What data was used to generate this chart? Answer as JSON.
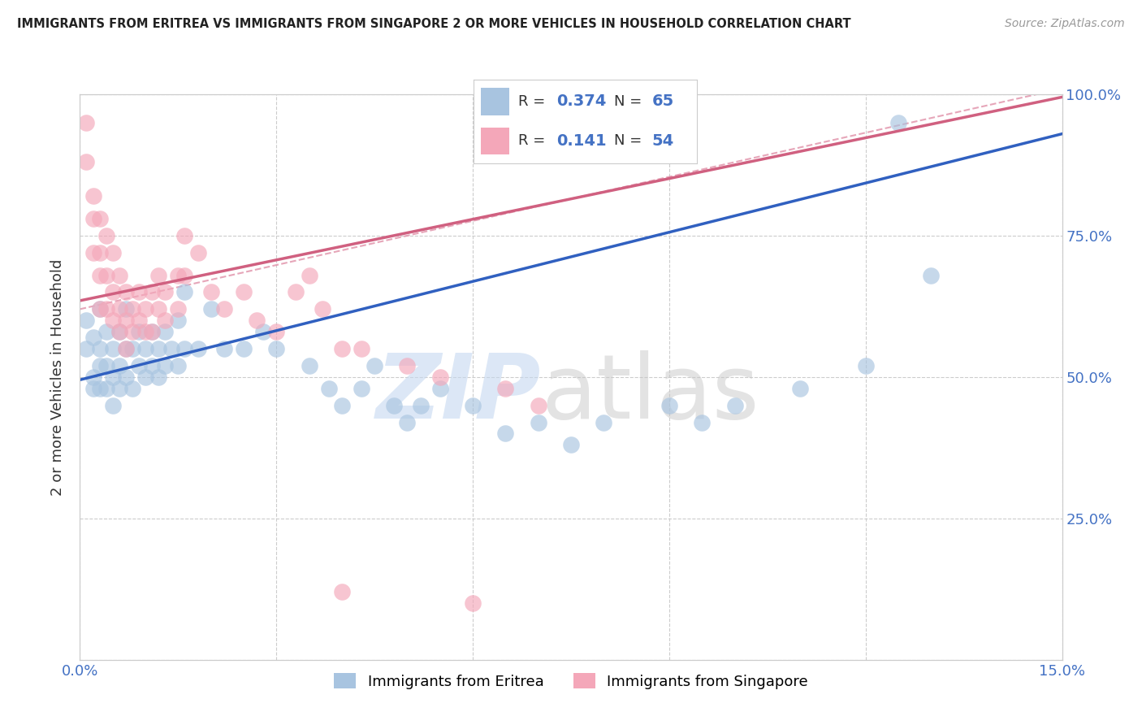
{
  "title": "IMMIGRANTS FROM ERITREA VS IMMIGRANTS FROM SINGAPORE 2 OR MORE VEHICLES IN HOUSEHOLD CORRELATION CHART",
  "source": "Source: ZipAtlas.com",
  "ylabel": "2 or more Vehicles in Household",
  "xlim": [
    0.0,
    0.15
  ],
  "ylim": [
    0.0,
    1.0
  ],
  "xtick_positions": [
    0.0,
    0.03,
    0.06,
    0.09,
    0.12,
    0.15
  ],
  "xtick_labels": [
    "0.0%",
    "",
    "",
    "",
    "",
    "15.0%"
  ],
  "ytick_labels_right": [
    "100.0%",
    "75.0%",
    "50.0%",
    "25.0%"
  ],
  "yticks_right": [
    1.0,
    0.75,
    0.5,
    0.25
  ],
  "eritrea_color": "#a8c4e0",
  "singapore_color": "#f4a7b9",
  "eritrea_R": 0.374,
  "eritrea_N": 65,
  "singapore_R": 0.141,
  "singapore_N": 54,
  "eritrea_line_color": "#3060c0",
  "singapore_line_color": "#d06080",
  "eritrea_line_intercept": 0.495,
  "eritrea_line_slope": 2.9,
  "singapore_line_intercept": 0.635,
  "singapore_line_slope": 2.4,
  "dashed_line_intercept": 0.62,
  "dashed_line_slope": 2.6,
  "background_color": "#ffffff",
  "eritrea_scatter": [
    [
      0.001,
      0.6
    ],
    [
      0.001,
      0.55
    ],
    [
      0.002,
      0.57
    ],
    [
      0.002,
      0.5
    ],
    [
      0.002,
      0.48
    ],
    [
      0.003,
      0.62
    ],
    [
      0.003,
      0.55
    ],
    [
      0.003,
      0.52
    ],
    [
      0.003,
      0.48
    ],
    [
      0.004,
      0.58
    ],
    [
      0.004,
      0.52
    ],
    [
      0.004,
      0.48
    ],
    [
      0.005,
      0.55
    ],
    [
      0.005,
      0.5
    ],
    [
      0.005,
      0.45
    ],
    [
      0.006,
      0.58
    ],
    [
      0.006,
      0.52
    ],
    [
      0.006,
      0.48
    ],
    [
      0.007,
      0.62
    ],
    [
      0.007,
      0.55
    ],
    [
      0.007,
      0.5
    ],
    [
      0.008,
      0.55
    ],
    [
      0.008,
      0.48
    ],
    [
      0.009,
      0.58
    ],
    [
      0.009,
      0.52
    ],
    [
      0.01,
      0.55
    ],
    [
      0.01,
      0.5
    ],
    [
      0.011,
      0.58
    ],
    [
      0.011,
      0.52
    ],
    [
      0.012,
      0.55
    ],
    [
      0.012,
      0.5
    ],
    [
      0.013,
      0.58
    ],
    [
      0.013,
      0.52
    ],
    [
      0.014,
      0.55
    ],
    [
      0.015,
      0.6
    ],
    [
      0.015,
      0.52
    ],
    [
      0.016,
      0.65
    ],
    [
      0.016,
      0.55
    ],
    [
      0.018,
      0.55
    ],
    [
      0.02,
      0.62
    ],
    [
      0.022,
      0.55
    ],
    [
      0.025,
      0.55
    ],
    [
      0.028,
      0.58
    ],
    [
      0.03,
      0.55
    ],
    [
      0.035,
      0.52
    ],
    [
      0.038,
      0.48
    ],
    [
      0.04,
      0.45
    ],
    [
      0.043,
      0.48
    ],
    [
      0.045,
      0.52
    ],
    [
      0.048,
      0.45
    ],
    [
      0.05,
      0.42
    ],
    [
      0.052,
      0.45
    ],
    [
      0.055,
      0.48
    ],
    [
      0.06,
      0.45
    ],
    [
      0.065,
      0.4
    ],
    [
      0.07,
      0.42
    ],
    [
      0.075,
      0.38
    ],
    [
      0.08,
      0.42
    ],
    [
      0.09,
      0.45
    ],
    [
      0.095,
      0.42
    ],
    [
      0.1,
      0.45
    ],
    [
      0.11,
      0.48
    ],
    [
      0.12,
      0.52
    ],
    [
      0.125,
      0.95
    ],
    [
      0.13,
      0.68
    ]
  ],
  "singapore_scatter": [
    [
      0.001,
      0.95
    ],
    [
      0.001,
      0.88
    ],
    [
      0.002,
      0.82
    ],
    [
      0.002,
      0.78
    ],
    [
      0.002,
      0.72
    ],
    [
      0.003,
      0.78
    ],
    [
      0.003,
      0.72
    ],
    [
      0.003,
      0.68
    ],
    [
      0.003,
      0.62
    ],
    [
      0.004,
      0.75
    ],
    [
      0.004,
      0.68
    ],
    [
      0.004,
      0.62
    ],
    [
      0.005,
      0.72
    ],
    [
      0.005,
      0.65
    ],
    [
      0.005,
      0.6
    ],
    [
      0.006,
      0.68
    ],
    [
      0.006,
      0.62
    ],
    [
      0.006,
      0.58
    ],
    [
      0.007,
      0.65
    ],
    [
      0.007,
      0.6
    ],
    [
      0.007,
      0.55
    ],
    [
      0.008,
      0.62
    ],
    [
      0.008,
      0.58
    ],
    [
      0.009,
      0.65
    ],
    [
      0.009,
      0.6
    ],
    [
      0.01,
      0.62
    ],
    [
      0.01,
      0.58
    ],
    [
      0.011,
      0.65
    ],
    [
      0.011,
      0.58
    ],
    [
      0.012,
      0.68
    ],
    [
      0.012,
      0.62
    ],
    [
      0.013,
      0.65
    ],
    [
      0.013,
      0.6
    ],
    [
      0.015,
      0.68
    ],
    [
      0.015,
      0.62
    ],
    [
      0.016,
      0.75
    ],
    [
      0.016,
      0.68
    ],
    [
      0.018,
      0.72
    ],
    [
      0.02,
      0.65
    ],
    [
      0.022,
      0.62
    ],
    [
      0.025,
      0.65
    ],
    [
      0.027,
      0.6
    ],
    [
      0.03,
      0.58
    ],
    [
      0.033,
      0.65
    ],
    [
      0.035,
      0.68
    ],
    [
      0.037,
      0.62
    ],
    [
      0.04,
      0.55
    ],
    [
      0.043,
      0.55
    ],
    [
      0.05,
      0.52
    ],
    [
      0.055,
      0.5
    ],
    [
      0.065,
      0.48
    ],
    [
      0.07,
      0.45
    ],
    [
      0.04,
      0.12
    ],
    [
      0.06,
      0.1
    ]
  ]
}
